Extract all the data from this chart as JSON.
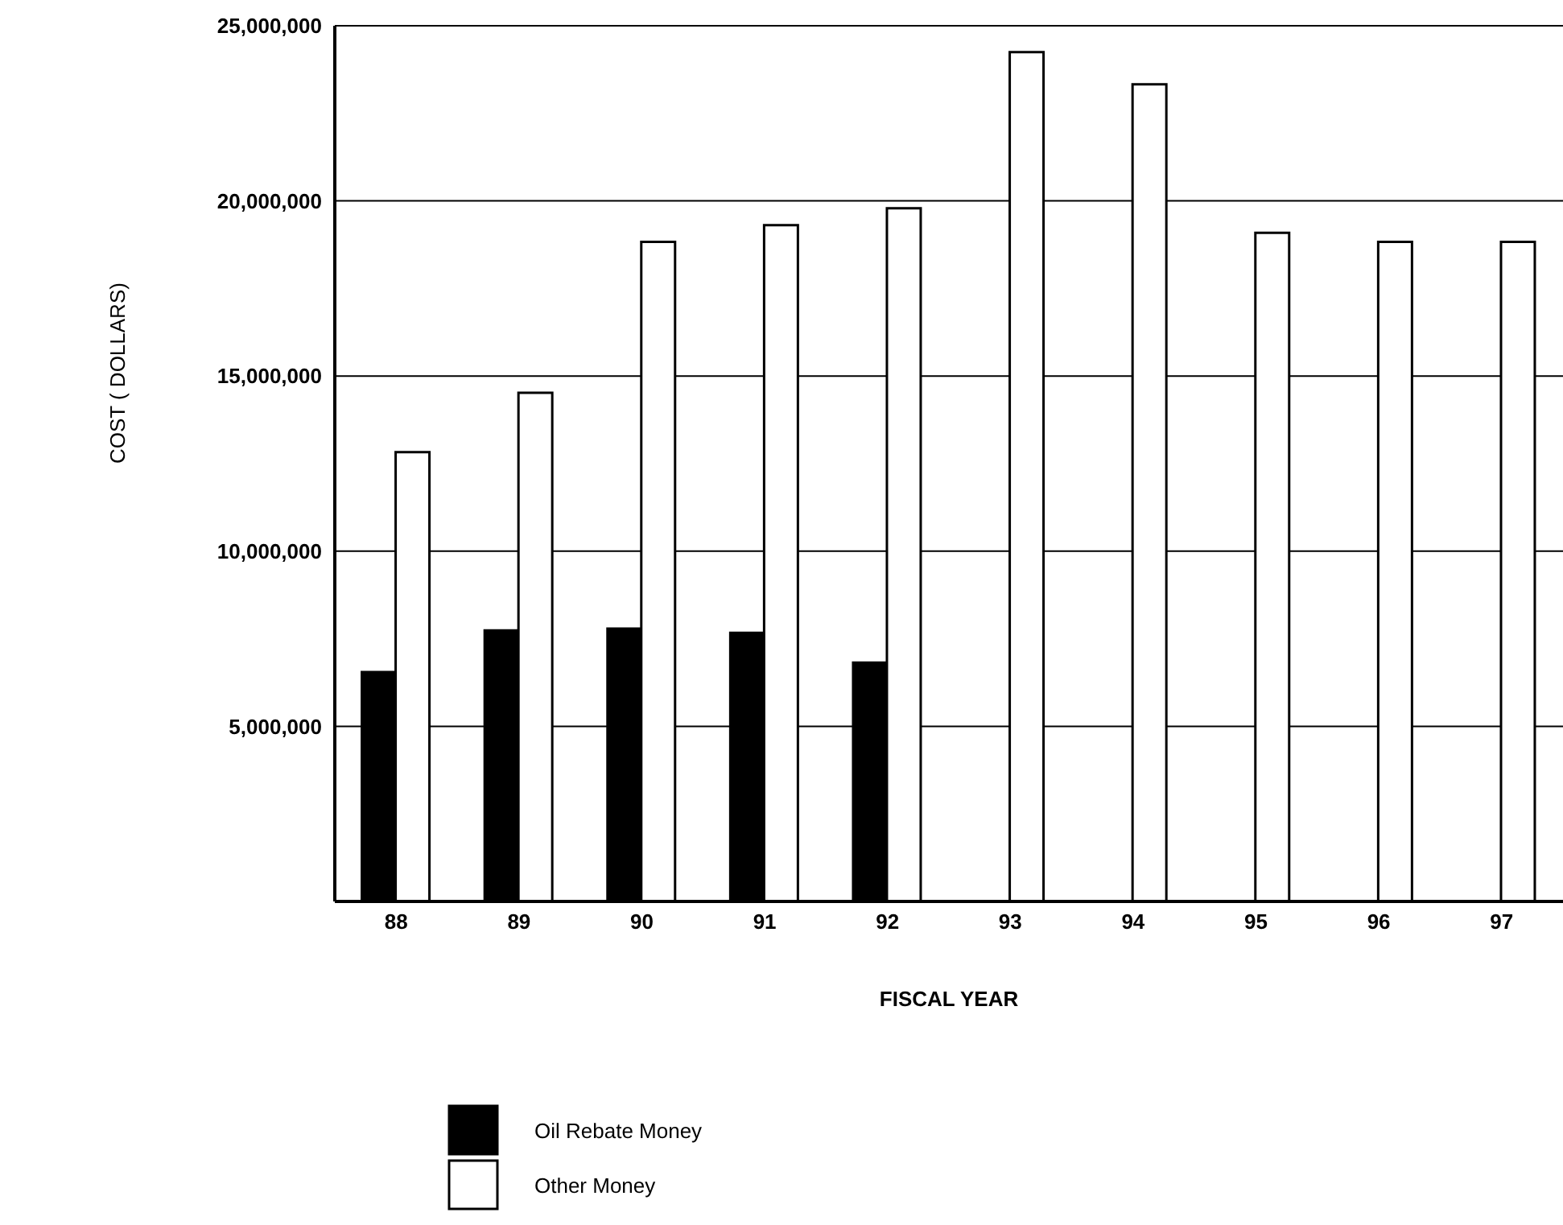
{
  "chart_data": {
    "type": "bar",
    "xlabel": "FISCAL YEAR",
    "ylabel": "COST ( DOLLARS)",
    "categories": [
      "88",
      "89",
      "90",
      "91",
      "92",
      "93",
      "94",
      "95",
      "96",
      "97"
    ],
    "series": [
      {
        "name": "Oil Rebate Money",
        "color": "#000000",
        "values": [
          6550000,
          7740000,
          7790000,
          7670000,
          6820000,
          null,
          null,
          null,
          null,
          null
        ]
      },
      {
        "name": "Other Money",
        "color": "#ffffff",
        "values": [
          12830000,
          14520000,
          18830000,
          19310000,
          19790000,
          24250000,
          23330000,
          19090000,
          18830000,
          18830000
        ]
      }
    ],
    "ylim": [
      0,
      25000000
    ],
    "yticks": [
      {
        "value": 5000000,
        "label": "5,000,000"
      },
      {
        "value": 10000000,
        "label": "10,000,000"
      },
      {
        "value": 15000000,
        "label": "15,000,000"
      },
      {
        "value": 20000000,
        "label": "20,000,000"
      },
      {
        "value": 25000000,
        "label": "25,000,000"
      }
    ],
    "grid": "y",
    "legend": "bottom left"
  }
}
